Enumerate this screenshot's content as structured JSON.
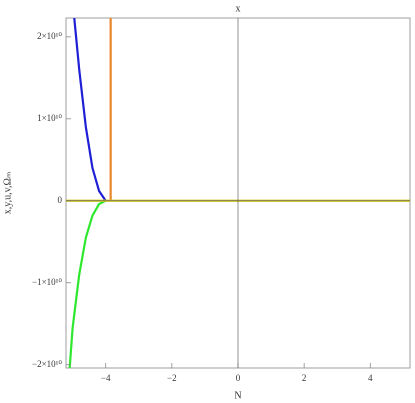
{
  "chart_data": {
    "type": "line",
    "top_label": "x",
    "x_label": "N",
    "y_label": "x,y,u,v,Ωₘ",
    "xlim": [
      -5.2,
      5.2
    ],
    "ylim": [
      -20400000000,
      22300000000
    ],
    "xticks": [
      {
        "value": -4,
        "label": "−4"
      },
      {
        "value": -2,
        "label": "−2"
      },
      0,
      2,
      4
    ],
    "yticks": [
      {
        "value": -20000000000,
        "label": "−2×10¹⁰"
      },
      {
        "value": -10000000000,
        "label": "−1×10¹⁰"
      },
      0,
      {
        "value": 10000000000,
        "label": "1×10¹⁰"
      },
      {
        "value": 20000000000,
        "label": "2×10¹⁰"
      }
    ],
    "series": [
      {
        "color": "#1f1fd6",
        "x": [
          -4.95,
          -4.8,
          -4.6,
          -4.4,
          -4.2,
          -4.0
        ],
        "values": [
          22300000000,
          16000000000,
          9000000000,
          4000000000,
          1200000000,
          0
        ]
      },
      {
        "color": "#e8862a",
        "x": [
          -3.85,
          -3.85
        ],
        "values": [
          0,
          22300000000
        ]
      },
      {
        "color": "#2ee82e",
        "x": [
          -5.1,
          -5.0,
          -4.8,
          -4.6,
          -4.4,
          -4.2,
          -4.0
        ],
        "values": [
          -21000000000,
          -15500000000,
          -9000000000,
          -4500000000,
          -1800000000,
          -400000000,
          0
        ]
      },
      {
        "color": "#d8c81a",
        "x": [
          -5.2,
          5.2
        ],
        "values": [
          0,
          0
        ]
      }
    ]
  }
}
